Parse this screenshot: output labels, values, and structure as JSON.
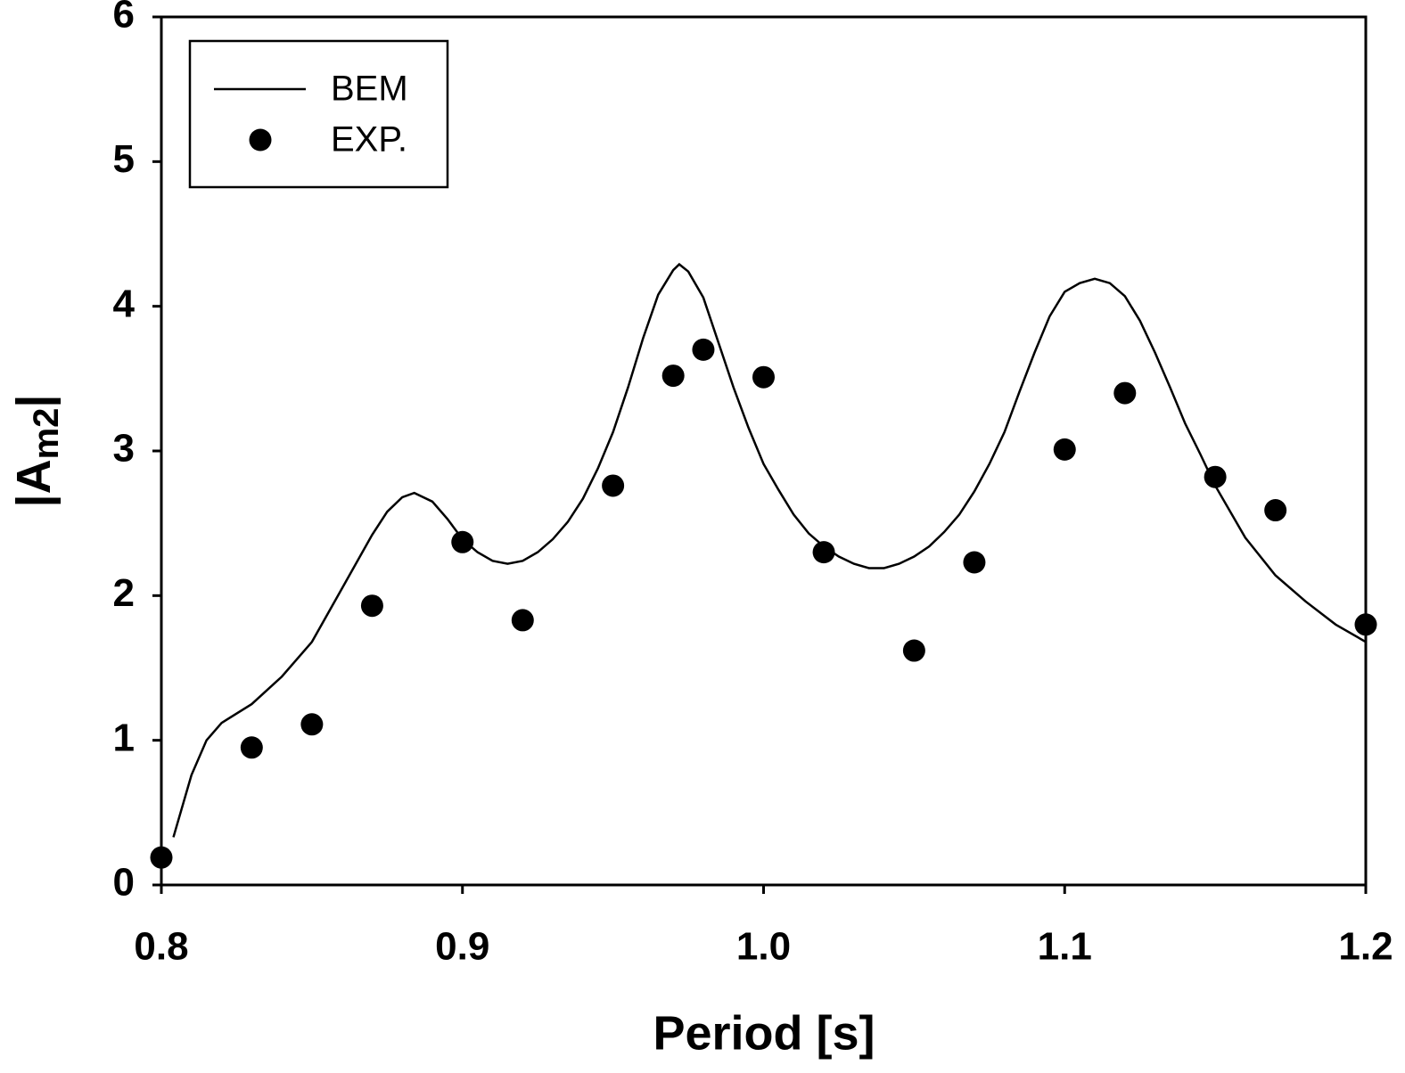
{
  "chart_data": {
    "type": "line",
    "x_label": "Period [s]",
    "y_label": [
      "|A",
      "m2",
      "|"
    ],
    "xlim": [
      0.8,
      1.2
    ],
    "xticks": [
      0.8,
      0.9,
      {
        "value": 1,
        "label": "1.0"
      },
      1.1,
      1.2
    ],
    "ylim": [
      0,
      6
    ],
    "yticks": [
      0,
      1,
      2,
      3,
      4,
      5,
      6
    ],
    "legend": "upper left",
    "series": [
      {
        "name": "BEM",
        "type": "line",
        "color": "#000000",
        "x": [
          0.804,
          0.81,
          0.815,
          0.82,
          0.83,
          0.84,
          0.85,
          0.86,
          0.87,
          0.875,
          0.88,
          0.884,
          0.89,
          0.895,
          0.9,
          0.905,
          0.91,
          0.915,
          0.92,
          0.925,
          0.93,
          0.935,
          0.94,
          0.945,
          0.95,
          0.955,
          0.96,
          0.965,
          0.97,
          0.972,
          0.975,
          0.98,
          0.985,
          0.99,
          0.995,
          1.0,
          1.005,
          1.01,
          1.015,
          1.02,
          1.025,
          1.03,
          1.035,
          1.04,
          1.045,
          1.05,
          1.055,
          1.06,
          1.065,
          1.07,
          1.075,
          1.08,
          1.085,
          1.09,
          1.095,
          1.1,
          1.105,
          1.11,
          1.115,
          1.12,
          1.125,
          1.13,
          1.135,
          1.14,
          1.145,
          1.15,
          1.16,
          1.17,
          1.18,
          1.19,
          1.2
        ],
        "values": [
          0.33,
          0.76,
          1.0,
          1.12,
          1.25,
          1.44,
          1.68,
          2.05,
          2.42,
          2.58,
          2.68,
          2.71,
          2.65,
          2.53,
          2.39,
          2.3,
          2.24,
          2.22,
          2.24,
          2.3,
          2.39,
          2.51,
          2.67,
          2.88,
          3.13,
          3.44,
          3.78,
          4.08,
          4.25,
          4.29,
          4.24,
          4.06,
          3.75,
          3.44,
          3.16,
          2.91,
          2.73,
          2.56,
          2.43,
          2.34,
          2.27,
          2.22,
          2.19,
          2.19,
          2.22,
          2.27,
          2.34,
          2.44,
          2.56,
          2.72,
          2.91,
          3.13,
          3.41,
          3.68,
          3.93,
          4.1,
          4.16,
          4.19,
          4.16,
          4.07,
          3.9,
          3.68,
          3.44,
          3.19,
          2.98,
          2.76,
          2.4,
          2.14,
          1.96,
          1.8,
          1.68
        ]
      },
      {
        "name": "EXP.",
        "type": "scatter",
        "color": "#000000",
        "x": [
          0.8,
          0.83,
          0.85,
          0.87,
          0.9,
          0.92,
          0.95,
          0.97,
          0.98,
          1.0,
          1.02,
          1.05,
          1.07,
          1.1,
          1.12,
          1.15,
          1.17,
          1.2
        ],
        "values": [
          0.19,
          0.95,
          1.11,
          1.93,
          2.37,
          1.83,
          2.76,
          3.52,
          3.7,
          3.51,
          2.3,
          1.62,
          2.23,
          3.01,
          3.4,
          2.82,
          2.59,
          1.8
        ]
      }
    ]
  }
}
